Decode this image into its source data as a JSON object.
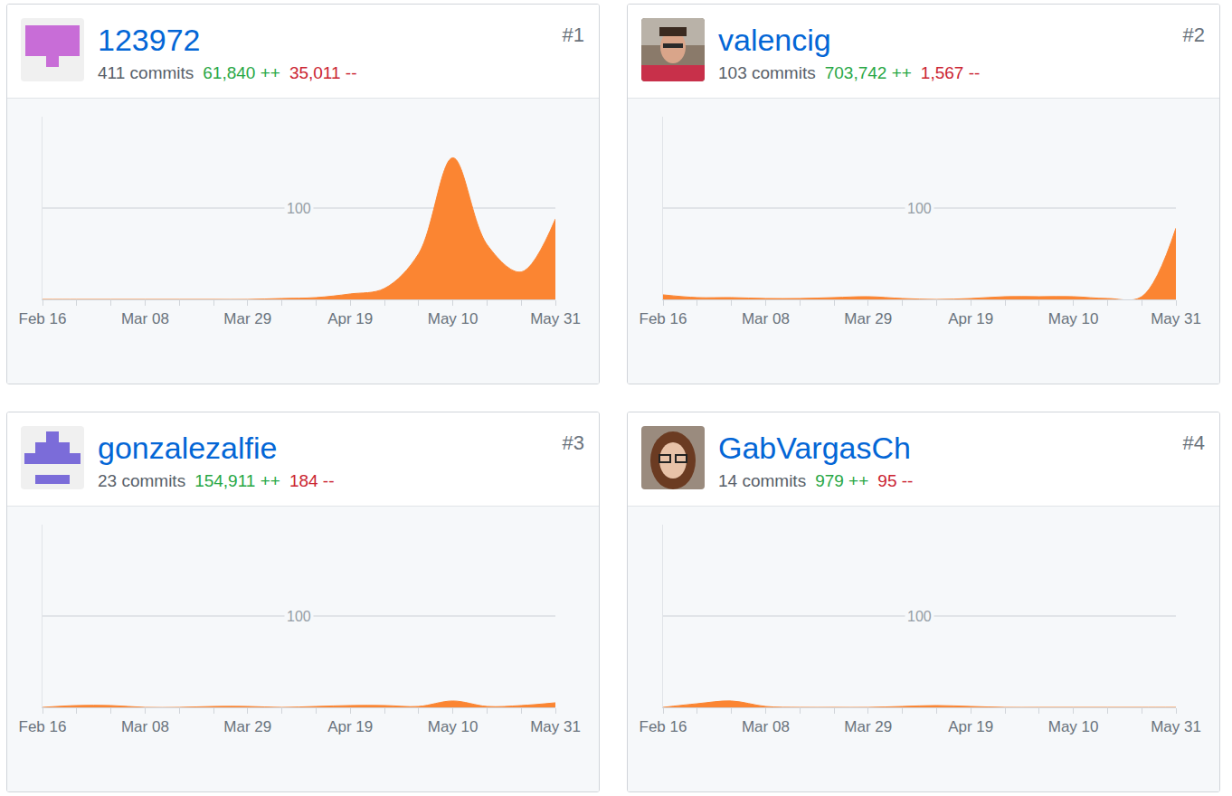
{
  "cards": [
    {
      "rank": "#1",
      "name": "123972",
      "commits": "411 commits",
      "additions": "61,840 ++",
      "deletions": "35,011 --"
    },
    {
      "rank": "#2",
      "name": "valencig",
      "commits": "103 commits",
      "additions": "703,742 ++",
      "deletions": "1,567 --"
    },
    {
      "rank": "#3",
      "name": "gonzalezalfie",
      "commits": "23 commits",
      "additions": "154,911 ++",
      "deletions": "184 --"
    },
    {
      "rank": "#4",
      "name": "GabVargasCh",
      "commits": "14 commits",
      "additions": "979 ++",
      "deletions": "95 --"
    }
  ],
  "chart_data": [
    {
      "type": "area",
      "categories": [
        "Feb 16",
        null,
        null,
        "Mar 08",
        null,
        null,
        "Mar 29",
        null,
        null,
        "Apr 19",
        null,
        null,
        "May 10",
        null,
        null,
        "May 31"
      ],
      "values": [
        0,
        0,
        0,
        0,
        0,
        0,
        0,
        1,
        2,
        6,
        12,
        50,
        155,
        60,
        30,
        88
      ],
      "color": "#fb8532",
      "ylim": [
        0,
        200
      ],
      "yticks": [
        100
      ],
      "grid": true
    },
    {
      "type": "area",
      "categories": [
        "Feb 16",
        null,
        null,
        "Mar 08",
        null,
        null,
        "Mar 29",
        null,
        null,
        "Apr 19",
        null,
        null,
        "May 10",
        null,
        null,
        "May 31"
      ],
      "values": [
        5,
        2,
        2,
        1,
        1,
        2,
        3,
        1,
        0,
        1,
        3,
        3,
        3,
        1,
        3,
        78
      ],
      "color": "#fb8532",
      "ylim": [
        0,
        200
      ],
      "yticks": [
        100
      ],
      "grid": true
    },
    {
      "type": "area",
      "categories": [
        "Feb 16",
        null,
        null,
        "Mar 08",
        null,
        null,
        "Mar 29",
        null,
        null,
        "Apr 19",
        null,
        null,
        "May 10",
        null,
        null,
        "May 31"
      ],
      "values": [
        0,
        2,
        2,
        0,
        0,
        1,
        1,
        0,
        1,
        2,
        2,
        1,
        7,
        1,
        2,
        5
      ],
      "color": "#fb8532",
      "ylim": [
        0,
        200
      ],
      "yticks": [
        100
      ],
      "grid": true
    },
    {
      "type": "area",
      "categories": [
        "Feb 16",
        null,
        null,
        "Mar 08",
        null,
        null,
        "Mar 29",
        null,
        null,
        "Apr 19",
        null,
        null,
        "May 10",
        null,
        null,
        "May 31"
      ],
      "values": [
        0,
        4,
        7,
        1,
        0,
        0,
        0,
        1,
        2,
        1,
        0,
        0,
        0,
        0,
        0,
        0
      ],
      "color": "#fb8532",
      "ylim": [
        0,
        200
      ],
      "yticks": [
        100
      ],
      "grid": true
    }
  ]
}
